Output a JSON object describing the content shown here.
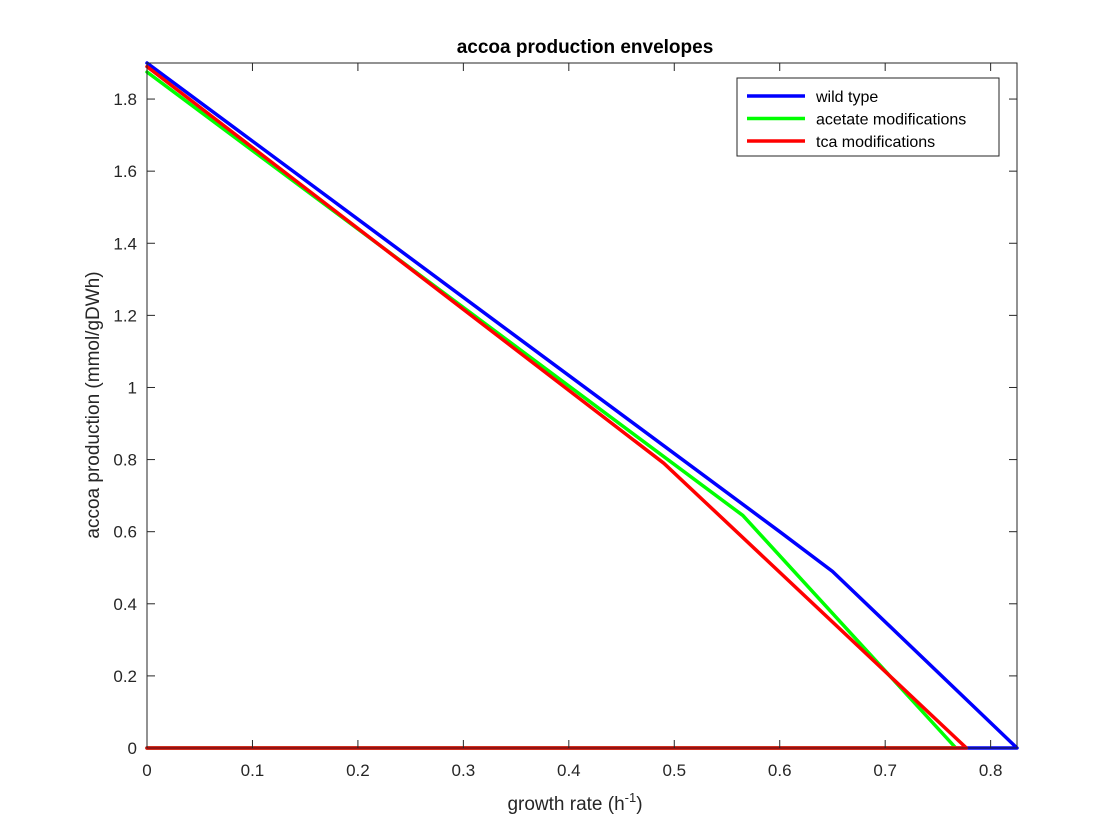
{
  "chart_data": {
    "type": "line",
    "title": "accoa production envelopes",
    "xlabel": {
      "prefix": "growth rate (h",
      "superscript": "-1",
      "suffix": ")"
    },
    "ylabel": "accoa production (mmol/gDWh)",
    "xlim": [
      0,
      0.825
    ],
    "ylim": [
      0,
      1.9
    ],
    "xticks": [
      0,
      0.1,
      0.2,
      0.3,
      0.4,
      0.5,
      0.6,
      0.7,
      0.8
    ],
    "xtick_labels": [
      "0",
      "0.1",
      "0.2",
      "0.3",
      "0.4",
      "0.5",
      "0.6",
      "0.7",
      "0.8"
    ],
    "yticks": [
      0,
      0.2,
      0.4,
      0.6,
      0.8,
      1.0,
      1.2,
      1.4,
      1.6,
      1.8
    ],
    "ytick_labels": [
      "0",
      "0.2",
      "0.4",
      "0.6",
      "0.8",
      "1",
      "1.2",
      "1.4",
      "1.6",
      "1.8"
    ],
    "grid": false,
    "legend_position": "top-right",
    "series": [
      {
        "name": "wild type",
        "color": "#0000ff",
        "x": [
          0,
          0.6,
          0.65,
          0.825,
          0.825,
          0
        ],
        "y": [
          1.9,
          0.6,
          0.49,
          0,
          0,
          0
        ]
      },
      {
        "name": "acetate modifications",
        "color": "#00ff00",
        "x": [
          0,
          0.565,
          0.767,
          0
        ],
        "y": [
          1.875,
          0.645,
          0,
          0
        ]
      },
      {
        "name": "tca modifications",
        "color": "#ff0000",
        "x": [
          0,
          0.49,
          0.53,
          0.777,
          0
        ],
        "y": [
          1.89,
          0.79,
          0.68,
          0,
          0
        ]
      }
    ]
  }
}
